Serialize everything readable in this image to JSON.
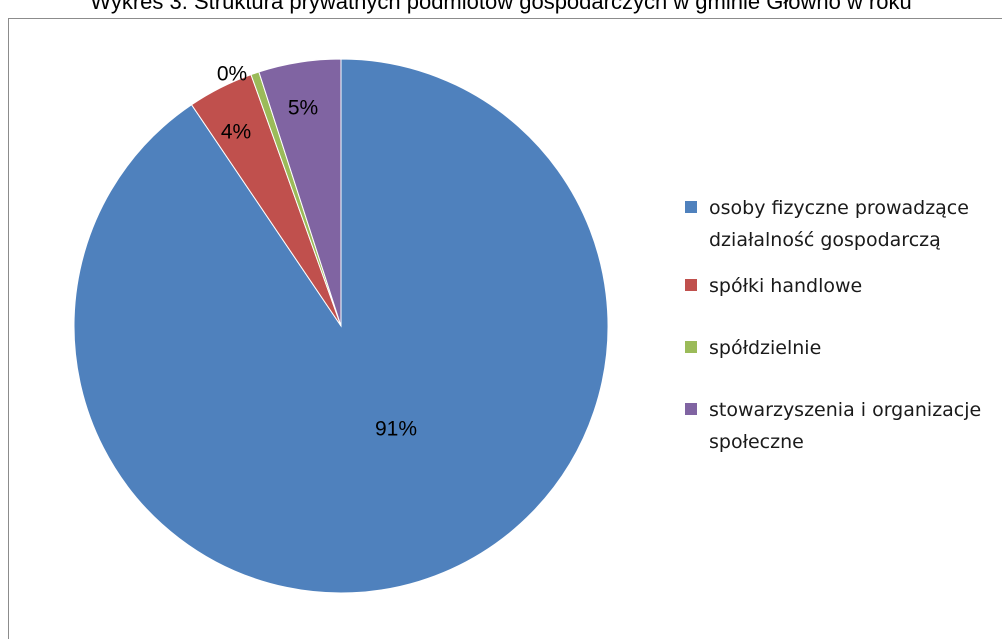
{
  "title": "Wykres 3. Struktura prywatnych podmiotów gospodarczych w gminie Głowno w roku",
  "chart_data": {
    "type": "pie",
    "title": "Wykres 3. Struktura prywatnych podmiotów gospodarczych w gminie Głowno w roku",
    "legend_position": "right",
    "slices": [
      {
        "name": "osoby fizyczne prowadzące działalność gospodarczą",
        "value": 91,
        "label": "91%",
        "color": "#4f81bd"
      },
      {
        "name": "spółki handlowe",
        "value": 4,
        "label": "4%",
        "color": "#c0504d"
      },
      {
        "name": "spółdzielnie",
        "value": 0.5,
        "label": "0%",
        "color": "#9bbb59"
      },
      {
        "name": "stowarzyszenia i organizacje społeczne",
        "value": 5,
        "label": "5%",
        "color": "#8064a2"
      }
    ]
  }
}
